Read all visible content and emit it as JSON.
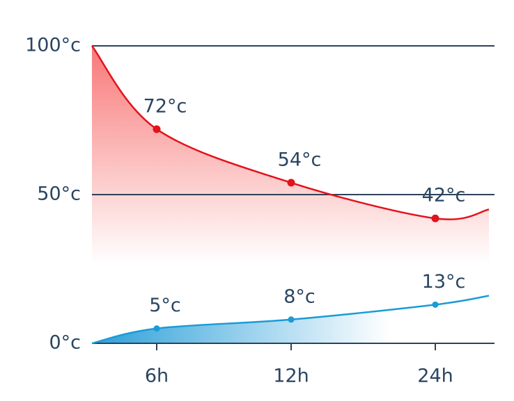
{
  "chart_data": {
    "type": "line",
    "categories": [
      null,
      "6h",
      "12h",
      "24h",
      null
    ],
    "series": [
      {
        "color": "#e3121b",
        "fill": "#f87878",
        "values": [
          100,
          72,
          54,
          42,
          45
        ],
        "value_labels": [
          null,
          "72°c",
          "54°c",
          "42°c",
          null
        ]
      },
      {
        "color": "#1a9bd7",
        "fill": "#3aa6dc",
        "values": [
          0,
          5,
          8,
          13,
          16
        ],
        "value_labels": [
          null,
          "5°c",
          "8°c",
          "13°c",
          null
        ]
      }
    ],
    "ylim": [
      0,
      100
    ],
    "yticks": [
      {
        "value": 0,
        "label": "0°c"
      },
      {
        "value": 50,
        "label": "50°c"
      },
      {
        "value": 100,
        "label": "100°c"
      }
    ],
    "grid": true
  }
}
